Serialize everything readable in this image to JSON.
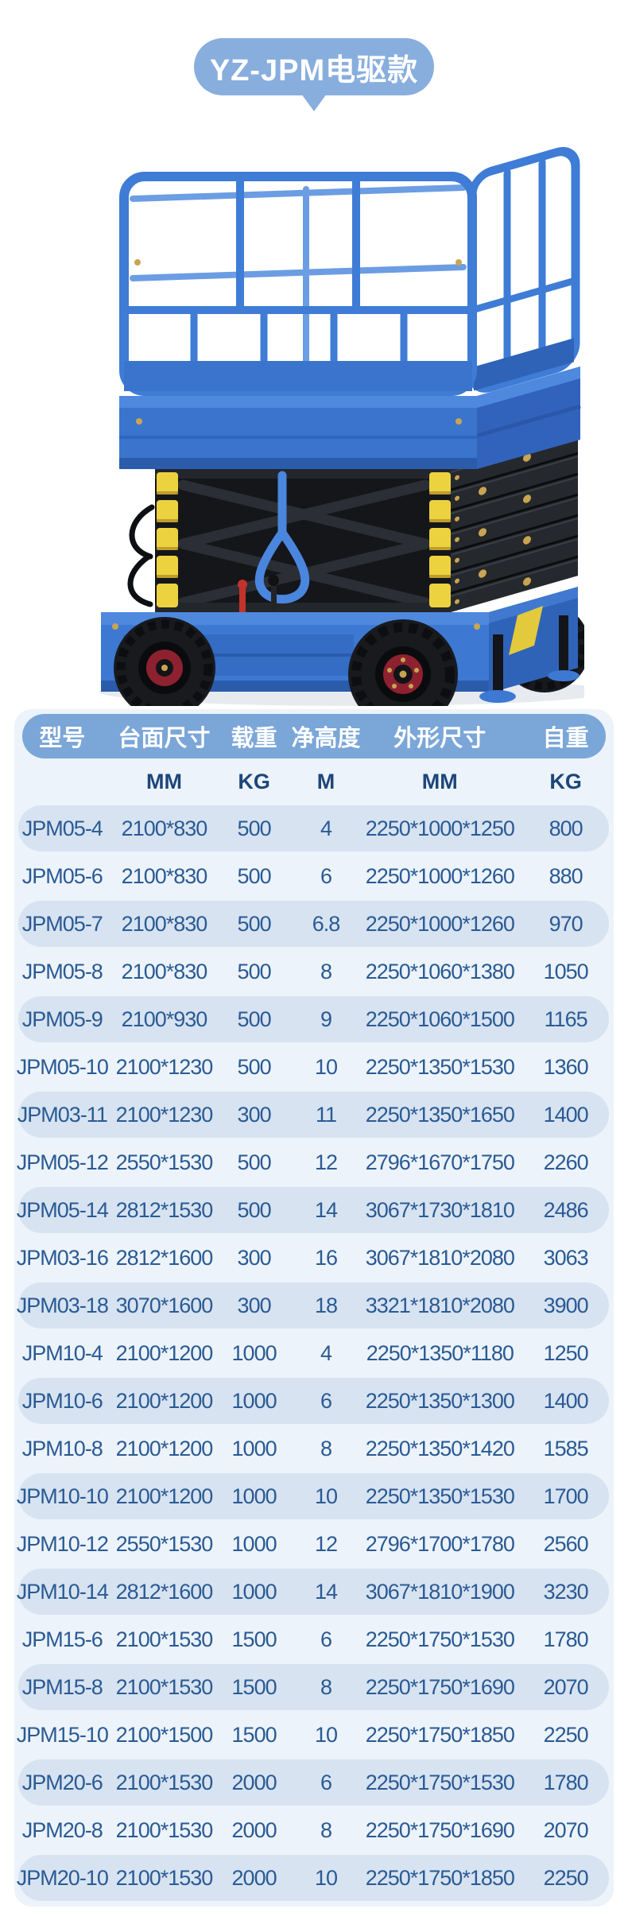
{
  "header": {
    "title": "YZ-JPM电驱款"
  },
  "colors": {
    "title_badge_bg": "#88aede",
    "table_header_bg": "#7ba6d8",
    "table_container_bg": "#ecf3fa",
    "row_highlight_bg": "#d7e3f1",
    "table_text": "#2a5a94",
    "machine_blue": "#3d79d2",
    "machine_yellow": "#ecd23f",
    "machine_black": "#212428"
  },
  "product_image": {
    "name": "electric-scissor-lift-photo",
    "parts": [
      "guard-rail-cage",
      "platform-deck",
      "scissor-stack",
      "chassis",
      "wheels",
      "outrigger-feet"
    ]
  },
  "table": {
    "headers": [
      "型号",
      "台面尺寸",
      "载重",
      "净高度",
      "外形尺寸",
      "自重"
    ],
    "units": [
      "",
      "MM",
      "KG",
      "M",
      "MM",
      "KG"
    ],
    "cell_names": [
      "cell-model",
      "cell-platform-size",
      "cell-load",
      "cell-net-height",
      "cell-overall-size",
      "cell-self-weight"
    ],
    "rows": [
      [
        "JPM05-4",
        "2100*830",
        "500",
        "4",
        "2250*1000*1250",
        "800"
      ],
      [
        "JPM05-6",
        "2100*830",
        "500",
        "6",
        "2250*1000*1260",
        "880"
      ],
      [
        "JPM05-7",
        "2100*830",
        "500",
        "6.8",
        "2250*1000*1260",
        "970"
      ],
      [
        "JPM05-8",
        "2100*830",
        "500",
        "8",
        "2250*1060*1380",
        "1050"
      ],
      [
        "JPM05-9",
        "2100*930",
        "500",
        "9",
        "2250*1060*1500",
        "1165"
      ],
      [
        "JPM05-10",
        "2100*1230",
        "500",
        "10",
        "2250*1350*1530",
        "1360"
      ],
      [
        "JPM03-11",
        "2100*1230",
        "300",
        "11",
        "2250*1350*1650",
        "1400"
      ],
      [
        "JPM05-12",
        "2550*1530",
        "500",
        "12",
        "2796*1670*1750",
        "2260"
      ],
      [
        "JPM05-14",
        "2812*1530",
        "500",
        "14",
        "3067*1730*1810",
        "2486"
      ],
      [
        "JPM03-16",
        "2812*1600",
        "300",
        "16",
        "3067*1810*2080",
        "3063"
      ],
      [
        "JPM03-18",
        "3070*1600",
        "300",
        "18",
        "3321*1810*2080",
        "3900"
      ],
      [
        "JPM10-4",
        "2100*1200",
        "1000",
        "4",
        "2250*1350*1180",
        "1250"
      ],
      [
        "JPM10-6",
        "2100*1200",
        "1000",
        "6",
        "2250*1350*1300",
        "1400"
      ],
      [
        "JPM10-8",
        "2100*1200",
        "1000",
        "8",
        "2250*1350*1420",
        "1585"
      ],
      [
        "JPM10-10",
        "2100*1200",
        "1000",
        "10",
        "2250*1350*1530",
        "1700"
      ],
      [
        "JPM10-12",
        "2550*1530",
        "1000",
        "12",
        "2796*1700*1780",
        "2560"
      ],
      [
        "JPM10-14",
        "2812*1600",
        "1000",
        "14",
        "3067*1810*1900",
        "3230"
      ],
      [
        "JPM15-6",
        "2100*1530",
        "1500",
        "6",
        "2250*1750*1530",
        "1780"
      ],
      [
        "JPM15-8",
        "2100*1530",
        "1500",
        "8",
        "2250*1750*1690",
        "2070"
      ],
      [
        "JPM15-10",
        "2100*1500",
        "1500",
        "10",
        "2250*1750*1850",
        "2250"
      ],
      [
        "JPM20-6",
        "2100*1530",
        "2000",
        "6",
        "2250*1750*1530",
        "1780"
      ],
      [
        "JPM20-8",
        "2100*1530",
        "2000",
        "8",
        "2250*1750*1690",
        "2070"
      ],
      [
        "JPM20-10",
        "2100*1530",
        "2000",
        "10",
        "2250*1750*1850",
        "2250"
      ]
    ]
  }
}
